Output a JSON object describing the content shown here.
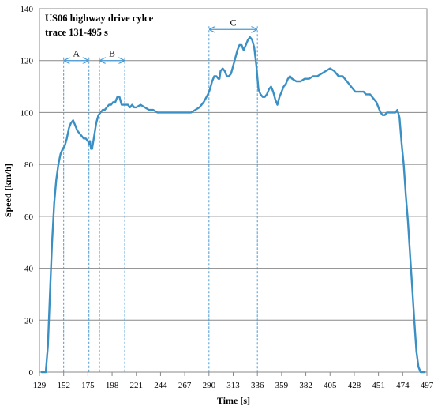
{
  "chart_data": {
    "type": "line",
    "title": "US06 highway drive cylce",
    "subtitle": "trace 131-495 s",
    "xlabel": "Time [s]",
    "ylabel": "Speed [km/h]",
    "xlim": [
      129,
      497
    ],
    "ylim": [
      0,
      140
    ],
    "x_ticks": [
      129,
      152,
      175,
      198,
      221,
      244,
      267,
      290,
      313,
      336,
      359,
      382,
      405,
      428,
      451,
      474,
      497
    ],
    "y_ticks": [
      0,
      20,
      40,
      60,
      80,
      100,
      120,
      140
    ],
    "grid": "horizontal",
    "color": "#3a8fc4",
    "annotation_color": "#4a9ad4",
    "series": [
      {
        "x": [
          131,
          135,
          137,
          139,
          141,
          143,
          145,
          147,
          149,
          151,
          153,
          155,
          157,
          159,
          161,
          163,
          165,
          167,
          169,
          171,
          173,
          175,
          176,
          177,
          178,
          179,
          181,
          183,
          185,
          187,
          189,
          191,
          193,
          195,
          197,
          199,
          201,
          203,
          205,
          207,
          209,
          211,
          213,
          215,
          217,
          219,
          221,
          225,
          229,
          233,
          237,
          241,
          245,
          249,
          253,
          257,
          261,
          265,
          269,
          273,
          277,
          281,
          285,
          289,
          291,
          293,
          295,
          297,
          299,
          300,
          301,
          303,
          305,
          307,
          309,
          311,
          313,
          315,
          317,
          319,
          321,
          323,
          325,
          327,
          329,
          331,
          333,
          335,
          337,
          339,
          341,
          343,
          345,
          347,
          349,
          351,
          353,
          355,
          357,
          359,
          361,
          363,
          365,
          367,
          369,
          373,
          377,
          381,
          385,
          389,
          393,
          397,
          401,
          405,
          409,
          413,
          417,
          421,
          423,
          425,
          427,
          429,
          431,
          433,
          435,
          437,
          439,
          441,
          443,
          445,
          447,
          449,
          451,
          453,
          455,
          457,
          459,
          461,
          463,
          465,
          467,
          469,
          471,
          473,
          475,
          477,
          479,
          481,
          483,
          485,
          487,
          489,
          491,
          493,
          495
        ],
        "y": [
          0,
          0,
          10,
          30,
          50,
          65,
          74,
          80,
          84,
          86,
          87,
          90,
          94,
          96,
          97,
          95,
          93,
          92,
          91,
          90,
          90,
          89,
          88,
          89,
          86,
          86,
          91,
          96,
          99,
          100,
          101,
          101,
          102,
          103,
          103,
          104,
          104,
          106,
          106,
          103,
          103,
          103,
          103,
          102,
          103,
          102,
          102,
          103,
          102,
          101,
          101,
          100,
          100,
          100,
          100,
          100,
          100,
          100,
          100,
          100,
          101,
          102,
          104,
          107,
          109,
          112,
          114,
          114,
          113,
          113,
          116,
          117,
          116,
          114,
          114,
          115,
          118,
          121,
          124,
          126,
          126,
          124,
          126,
          128,
          129,
          128,
          125,
          118,
          109,
          107,
          106,
          106,
          107,
          109,
          110,
          108,
          105,
          103,
          106,
          108,
          110,
          111,
          113,
          114,
          113,
          112,
          112,
          113,
          113,
          114,
          114,
          115,
          116,
          117,
          116,
          114,
          114,
          112,
          111,
          110,
          109,
          108,
          108,
          108,
          108,
          108,
          107,
          107,
          107,
          106,
          105,
          104,
          102,
          100,
          99,
          99,
          100,
          100,
          100,
          100,
          100,
          101,
          98,
          88,
          80,
          68,
          58,
          45,
          33,
          20,
          8,
          2,
          0,
          0,
          0
        ]
      }
    ],
    "annotations": [
      {
        "label": "A",
        "x1": 152,
        "x2": 176,
        "arrow_y": 120
      },
      {
        "label": "B",
        "x1": 186,
        "x2": 210,
        "arrow_y": 120
      },
      {
        "label": "C",
        "x1": 290,
        "x2": 336,
        "arrow_y": 132
      }
    ]
  }
}
